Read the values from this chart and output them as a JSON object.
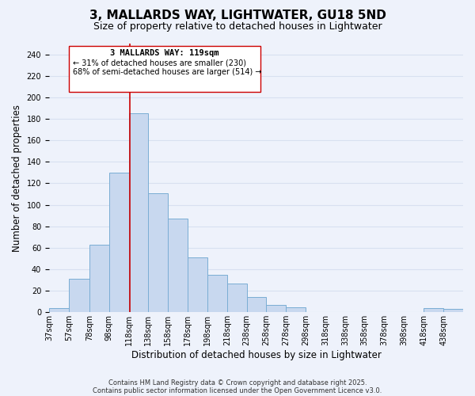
{
  "title": "3, MALLARDS WAY, LIGHTWATER, GU18 5ND",
  "subtitle": "Size of property relative to detached houses in Lightwater",
  "xlabel": "Distribution of detached houses by size in Lightwater",
  "ylabel": "Number of detached properties",
  "bar_left_edges": [
    37,
    57,
    78,
    98,
    118,
    138,
    158,
    178,
    198,
    218,
    238,
    258,
    278,
    298,
    318,
    338,
    358,
    378,
    398,
    418,
    438
  ],
  "bar_widths": [
    20,
    21,
    20,
    20,
    20,
    20,
    20,
    20,
    20,
    20,
    20,
    20,
    20,
    20,
    20,
    20,
    20,
    20,
    20,
    20,
    20
  ],
  "bar_heights": [
    4,
    31,
    63,
    130,
    185,
    111,
    87,
    51,
    35,
    27,
    14,
    7,
    5,
    0,
    0,
    0,
    0,
    0,
    0,
    4,
    3
  ],
  "tick_labels": [
    "37sqm",
    "57sqm",
    "78sqm",
    "98sqm",
    "118sqm",
    "138sqm",
    "158sqm",
    "178sqm",
    "198sqm",
    "218sqm",
    "238sqm",
    "258sqm",
    "278sqm",
    "298sqm",
    "318sqm",
    "338sqm",
    "358sqm",
    "378sqm",
    "398sqm",
    "418sqm",
    "438sqm"
  ],
  "tick_positions": [
    37,
    57,
    78,
    98,
    118,
    138,
    158,
    178,
    198,
    218,
    238,
    258,
    278,
    298,
    318,
    338,
    358,
    378,
    398,
    418,
    438
  ],
  "bar_color": "#c8d8ef",
  "bar_edge_color": "#7aadd4",
  "vline_x": 119,
  "vline_color": "#cc0000",
  "ylim": [
    0,
    250
  ],
  "yticks": [
    0,
    20,
    40,
    60,
    80,
    100,
    120,
    140,
    160,
    180,
    200,
    220,
    240
  ],
  "xlim": [
    37,
    458
  ],
  "annotation_line1": "3 MALLARDS WAY: 119sqm",
  "annotation_line2": "← 31% of detached houses are smaller (230)",
  "annotation_line3": "68% of semi-detached houses are larger (514) →",
  "footnote1": "Contains HM Land Registry data © Crown copyright and database right 2025.",
  "footnote2": "Contains public sector information licensed under the Open Government Licence v3.0.",
  "bg_color": "#eef2fb",
  "grid_color": "#d8e0f0",
  "title_fontsize": 11,
  "subtitle_fontsize": 9,
  "axis_label_fontsize": 8.5,
  "tick_fontsize": 7,
  "annotation_fontsize": 7.5,
  "footnote_fontsize": 6
}
